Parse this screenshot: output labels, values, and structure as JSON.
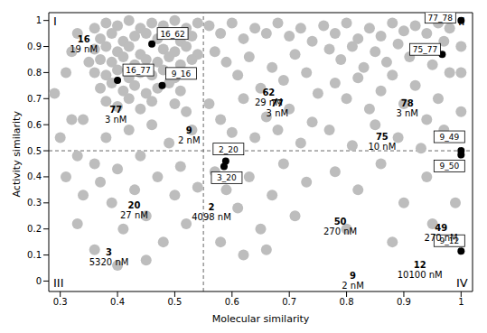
{
  "chart_data": {
    "type": "scatter",
    "xlabel": "Molecular similarity",
    "ylabel": "Activity similarity",
    "xlim": [
      0.28,
      1.02
    ],
    "ylim": [
      -0.04,
      1.03
    ],
    "xticks": [
      0.3,
      0.4,
      0.5,
      0.6,
      0.7,
      0.8,
      0.9,
      1
    ],
    "yticks": [
      0,
      0.1,
      0.2,
      0.3,
      0.4,
      0.5,
      0.6,
      0.7,
      0.8,
      0.9,
      1
    ],
    "grid": false,
    "reference_lines": {
      "x": 0.55,
      "y": 0.5,
      "line_style": "dashed"
    },
    "quadrants": [
      "I",
      "II",
      "III",
      "IV"
    ],
    "series": [
      {
        "color": "#bdbdbd",
        "marker": "circle",
        "points": [
          [
            0.36,
            0.97
          ],
          [
            0.38,
            0.99
          ],
          [
            0.4,
            0.98
          ],
          [
            0.42,
            1.0
          ],
          [
            0.44,
            0.97
          ],
          [
            0.46,
            0.99
          ],
          [
            0.48,
            0.98
          ],
          [
            0.5,
            1.0
          ],
          [
            0.52,
            0.97
          ],
          [
            0.54,
            0.99
          ],
          [
            0.37,
            0.93
          ],
          [
            0.39,
            0.95
          ],
          [
            0.41,
            0.92
          ],
          [
            0.43,
            0.94
          ],
          [
            0.45,
            0.95
          ],
          [
            0.47,
            0.93
          ],
          [
            0.49,
            0.95
          ],
          [
            0.51,
            0.92
          ],
          [
            0.53,
            0.94
          ],
          [
            0.36,
            0.89
          ],
          [
            0.38,
            0.9
          ],
          [
            0.4,
            0.88
          ],
          [
            0.42,
            0.9
          ],
          [
            0.44,
            0.87
          ],
          [
            0.48,
            0.89
          ],
          [
            0.5,
            0.88
          ],
          [
            0.52,
            0.9
          ],
          [
            0.54,
            0.87
          ],
          [
            0.35,
            0.84
          ],
          [
            0.37,
            0.85
          ],
          [
            0.39,
            0.84
          ],
          [
            0.41,
            0.86
          ],
          [
            0.43,
            0.83
          ],
          [
            0.45,
            0.85
          ],
          [
            0.47,
            0.84
          ],
          [
            0.49,
            0.86
          ],
          [
            0.51,
            0.83
          ],
          [
            0.53,
            0.85
          ],
          [
            0.36,
            0.8
          ],
          [
            0.38,
            0.79
          ],
          [
            0.4,
            0.81
          ],
          [
            0.42,
            0.78
          ],
          [
            0.44,
            0.8
          ],
          [
            0.46,
            0.79
          ],
          [
            0.48,
            0.81
          ],
          [
            0.5,
            0.78
          ],
          [
            0.52,
            0.8
          ],
          [
            0.37,
            0.74
          ],
          [
            0.39,
            0.76
          ],
          [
            0.41,
            0.73
          ],
          [
            0.43,
            0.75
          ],
          [
            0.45,
            0.72
          ],
          [
            0.47,
            0.74
          ],
          [
            0.49,
            0.76
          ],
          [
            0.51,
            0.73
          ],
          [
            0.38,
            0.69
          ],
          [
            0.4,
            0.67
          ],
          [
            0.42,
            0.7
          ],
          [
            0.44,
            0.66
          ],
          [
            0.46,
            0.69
          ],
          [
            0.5,
            0.68
          ],
          [
            0.52,
            0.65
          ],
          [
            0.3,
            0.55
          ],
          [
            0.32,
            0.62
          ],
          [
            0.33,
            0.48
          ],
          [
            0.31,
            0.4
          ],
          [
            0.34,
            0.33
          ],
          [
            0.33,
            0.22
          ],
          [
            0.36,
            0.45
          ],
          [
            0.37,
            0.38
          ],
          [
            0.38,
            0.55
          ],
          [
            0.39,
            0.3
          ],
          [
            0.4,
            0.43
          ],
          [
            0.41,
            0.2
          ],
          [
            0.42,
            0.58
          ],
          [
            0.43,
            0.35
          ],
          [
            0.44,
            0.48
          ],
          [
            0.45,
            0.25
          ],
          [
            0.46,
            0.6
          ],
          [
            0.47,
            0.4
          ],
          [
            0.48,
            0.15
          ],
          [
            0.49,
            0.53
          ],
          [
            0.5,
            0.33
          ],
          [
            0.51,
            0.44
          ],
          [
            0.52,
            0.22
          ],
          [
            0.53,
            0.58
          ],
          [
            0.54,
            0.36
          ],
          [
            0.4,
            0.06
          ],
          [
            0.45,
            0.08
          ],
          [
            0.36,
            0.12
          ],
          [
            0.34,
            0.62
          ],
          [
            0.29,
            0.72
          ],
          [
            0.31,
            0.8
          ],
          [
            0.32,
            0.88
          ],
          [
            0.33,
            0.95
          ],
          [
            0.56,
            0.98
          ],
          [
            0.58,
            0.95
          ],
          [
            0.6,
            0.99
          ],
          [
            0.62,
            0.93
          ],
          [
            0.64,
            0.97
          ],
          [
            0.66,
            0.95
          ],
          [
            0.68,
            0.99
          ],
          [
            0.7,
            0.94
          ],
          [
            0.72,
            0.97
          ],
          [
            0.74,
            0.92
          ],
          [
            0.57,
            0.88
          ],
          [
            0.59,
            0.84
          ],
          [
            0.61,
            0.79
          ],
          [
            0.63,
            0.86
          ],
          [
            0.65,
            0.74
          ],
          [
            0.67,
            0.82
          ],
          [
            0.69,
            0.77
          ],
          [
            0.71,
            0.87
          ],
          [
            0.73,
            0.8
          ],
          [
            0.75,
            0.72
          ],
          [
            0.56,
            0.68
          ],
          [
            0.58,
            0.62
          ],
          [
            0.6,
            0.57
          ],
          [
            0.62,
            0.7
          ],
          [
            0.64,
            0.55
          ],
          [
            0.66,
            0.63
          ],
          [
            0.68,
            0.58
          ],
          [
            0.7,
            0.66
          ],
          [
            0.72,
            0.53
          ],
          [
            0.74,
            0.61
          ],
          [
            0.57,
            0.42
          ],
          [
            0.59,
            0.35
          ],
          [
            0.61,
            0.28
          ],
          [
            0.63,
            0.4
          ],
          [
            0.65,
            0.2
          ],
          [
            0.67,
            0.33
          ],
          [
            0.69,
            0.45
          ],
          [
            0.71,
            0.25
          ],
          [
            0.73,
            0.38
          ],
          [
            0.58,
            0.15
          ],
          [
            0.62,
            0.1
          ],
          [
            0.66,
            0.12
          ],
          [
            0.76,
            0.98
          ],
          [
            0.78,
            0.95
          ],
          [
            0.8,
            0.99
          ],
          [
            0.82,
            0.93
          ],
          [
            0.84,
            0.97
          ],
          [
            0.86,
            0.94
          ],
          [
            0.88,
            0.99
          ],
          [
            0.9,
            0.96
          ],
          [
            0.92,
            0.98
          ],
          [
            0.94,
            0.95
          ],
          [
            0.96,
            0.99
          ],
          [
            0.98,
            0.97
          ],
          [
            0.77,
            0.89
          ],
          [
            0.79,
            0.85
          ],
          [
            0.81,
            0.9
          ],
          [
            0.83,
            0.82
          ],
          [
            0.85,
            0.88
          ],
          [
            0.87,
            0.84
          ],
          [
            0.89,
            0.91
          ],
          [
            0.91,
            0.86
          ],
          [
            0.93,
            0.89
          ],
          [
            0.95,
            0.83
          ],
          [
            0.97,
            0.92
          ],
          [
            0.78,
            0.76
          ],
          [
            0.8,
            0.7
          ],
          [
            0.82,
            0.78
          ],
          [
            0.84,
            0.66
          ],
          [
            0.86,
            0.73
          ],
          [
            0.88,
            0.79
          ],
          [
            0.9,
            0.68
          ],
          [
            0.92,
            0.75
          ],
          [
            0.94,
            0.62
          ],
          [
            0.96,
            0.7
          ],
          [
            0.98,
            0.8
          ],
          [
            0.77,
            0.58
          ],
          [
            0.81,
            0.52
          ],
          [
            0.85,
            0.6
          ],
          [
            0.89,
            0.55
          ],
          [
            0.93,
            0.51
          ],
          [
            0.97,
            0.58
          ],
          [
            0.78,
            0.42
          ],
          [
            0.82,
            0.35
          ],
          [
            0.86,
            0.45
          ],
          [
            0.9,
            0.3
          ],
          [
            0.94,
            0.4
          ],
          [
            0.8,
            0.2
          ],
          [
            0.88,
            0.15
          ],
          [
            0.95,
            0.22
          ],
          [
            0.99,
            0.3
          ],
          [
            1.0,
            0.65
          ],
          [
            1.0,
            0.8
          ],
          [
            1.0,
            0.9
          ]
        ]
      },
      {
        "color": "#000000",
        "marker": "circle",
        "labels": [
          "16_62",
          "16_77",
          "9_16",
          "77_78",
          "75_77",
          "2_20",
          "3_20",
          "9_49",
          "9_50",
          "9_12"
        ],
        "points": [
          [
            0.46,
            0.91
          ],
          [
            0.4,
            0.77
          ],
          [
            0.478,
            0.75
          ],
          [
            1.0,
            1.0
          ],
          [
            0.967,
            0.87
          ],
          [
            0.589,
            0.46
          ],
          [
            0.586,
            0.44
          ],
          [
            1.0,
            0.5
          ],
          [
            1.0,
            0.485
          ],
          [
            1.0,
            0.115
          ]
        ]
      }
    ],
    "annotations": [
      {
        "compound": "16",
        "ic50": "19 nM"
      },
      {
        "compound": "62",
        "ic50": "29 nM"
      },
      {
        "compound": "77",
        "ic50": "3 nM"
      },
      {
        "compound": "9",
        "ic50": "2 nM"
      },
      {
        "compound": "77",
        "ic50": "3 nM"
      },
      {
        "compound": "78",
        "ic50": "3 nM"
      },
      {
        "compound": "75",
        "ic50": "10 nM"
      },
      {
        "compound": "20",
        "ic50": "27 nM"
      },
      {
        "compound": "2",
        "ic50": "4098 nM"
      },
      {
        "compound": "3",
        "ic50": "5320 nM"
      },
      {
        "compound": "50",
        "ic50": "270 nM"
      },
      {
        "compound": "49",
        "ic50": "270 nM"
      },
      {
        "compound": "9",
        "ic50": "2 nM"
      },
      {
        "compound": "12",
        "ic50": "10100 nM"
      }
    ]
  }
}
